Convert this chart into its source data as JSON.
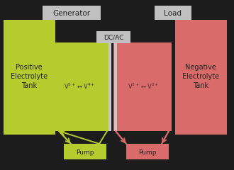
{
  "bg_color": "#1c1c1c",
  "green_color": "#b5cc2e",
  "red_color": "#d96b6b",
  "gray_color": "#c0c0c0",
  "sep_color": "#c8c8c8",
  "text_dark": "#222222",
  "figw": 3.3,
  "figh": 2.4,
  "dpi": 100,
  "generator_label": "Generator",
  "load_label": "Load",
  "dcac_label": "DC/AC",
  "left_tank_label": "Positive\nElectrolyte\nTank",
  "right_tank_label": "Negative\nElectrolyte\nTank",
  "left_pump_label": "Pump",
  "right_pump_label": "Pump",
  "left_chem": "V^{5+}\\leftrightarrow V^{4+}",
  "right_chem": "V^{3+}\\leftrightarrow V^{2+}"
}
